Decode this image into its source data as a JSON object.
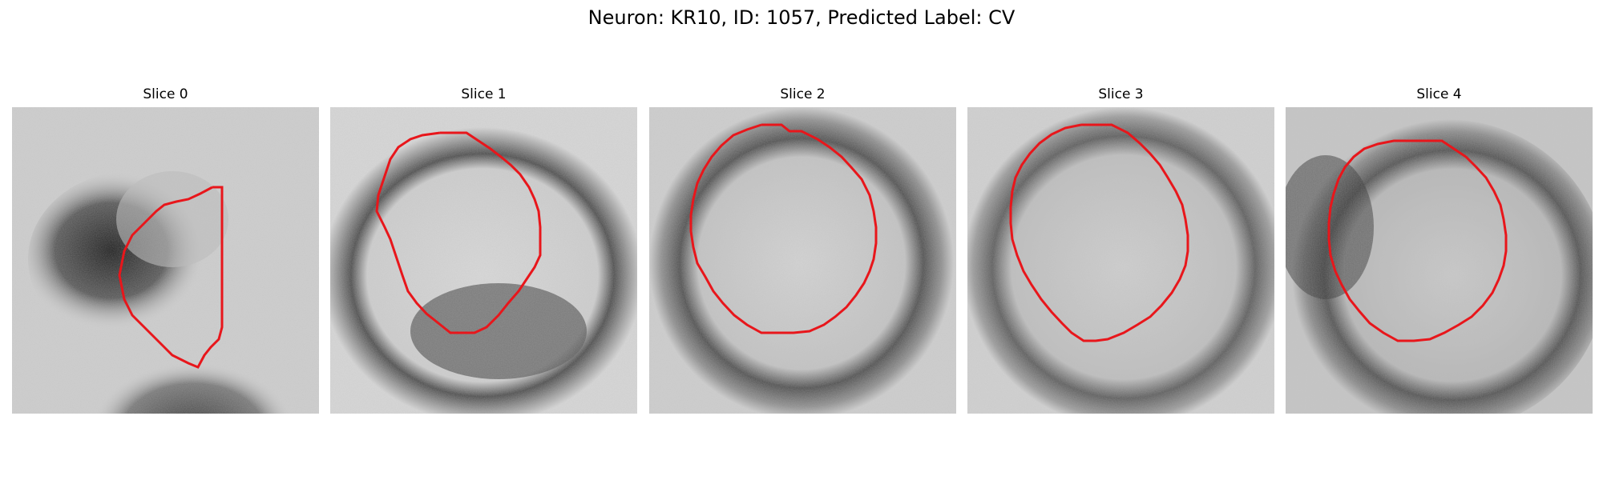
{
  "figure": {
    "title": "Neuron: KR10, ID: 1057, Predicted Label: CV"
  },
  "panels": [
    {
      "title": "Slice 0"
    },
    {
      "title": "Slice 1"
    },
    {
      "title": "Slice 2"
    },
    {
      "title": "Slice 3"
    },
    {
      "title": "Slice 4"
    }
  ],
  "colors": {
    "background": "#ffffff",
    "contour": "#e8161b",
    "image_colormap": "grayscale"
  }
}
